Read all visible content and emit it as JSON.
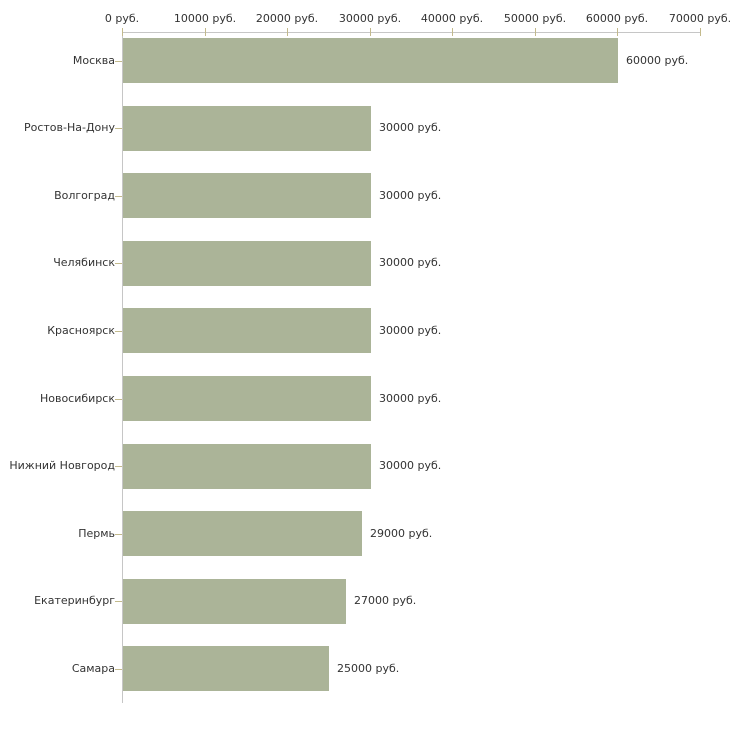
{
  "chart_data": {
    "type": "bar",
    "orientation": "horizontal",
    "unit": "руб.",
    "categories": [
      "Москва",
      "Ростов-На-Дону",
      "Волгоград",
      "Челябинск",
      "Красноярск",
      "Новосибирск",
      "Нижний Новгород",
      "Пермь",
      "Екатеринбург",
      "Самара"
    ],
    "values": [
      60000,
      30000,
      30000,
      30000,
      30000,
      30000,
      30000,
      29000,
      27000,
      25000
    ],
    "value_labels": [
      "60000 руб.",
      "30000 руб.",
      "30000 руб.",
      "30000 руб.",
      "30000 руб.",
      "30000 руб.",
      "30000 руб.",
      "29000 руб.",
      "27000 руб.",
      "25000 руб."
    ],
    "x_ticks": [
      0,
      10000,
      20000,
      30000,
      40000,
      50000,
      60000,
      70000
    ],
    "x_tick_labels": [
      "0 руб.",
      "10000 руб.",
      "20000 руб.",
      "30000 руб.",
      "40000 руб.",
      "50000 руб.",
      "60000 руб.",
      "70000 руб."
    ],
    "xlim": [
      0,
      70000
    ],
    "grid": false,
    "legend_position": "none",
    "xlabel": "",
    "ylabel": "",
    "title": "",
    "colors": {
      "bar": "#abb498",
      "axis": "#c6c6c6",
      "tick": "#c3ba8c",
      "text": "#333333",
      "background": "#ffffff"
    }
  }
}
